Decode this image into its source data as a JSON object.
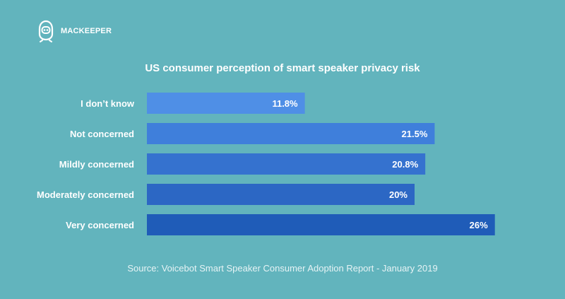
{
  "brand": {
    "name": "MACKEEPER",
    "logo_icon": "mackeeper-astronaut-icon"
  },
  "chart_data": {
    "type": "bar",
    "orientation": "horizontal",
    "title": "US consumer perception of smart speaker privacy risk",
    "categories": [
      "I don’t know",
      "Not concerned",
      "Mildly concerned",
      "Moderately concerned",
      "Very concerned"
    ],
    "values": [
      11.8,
      21.5,
      20.8,
      20,
      26
    ],
    "value_labels": [
      "11.8%",
      "21.5%",
      "20.8%",
      "20%",
      "26%"
    ],
    "unit": "%",
    "xlim": [
      0,
      28
    ],
    "grid": false,
    "colors": [
      "#4f8fe6",
      "#3f7fdb",
      "#3572cf",
      "#2c67c4",
      "#1f5cb8"
    ]
  },
  "source": "Source: Voicebot Smart Speaker Consumer Adoption Report - January 2019"
}
